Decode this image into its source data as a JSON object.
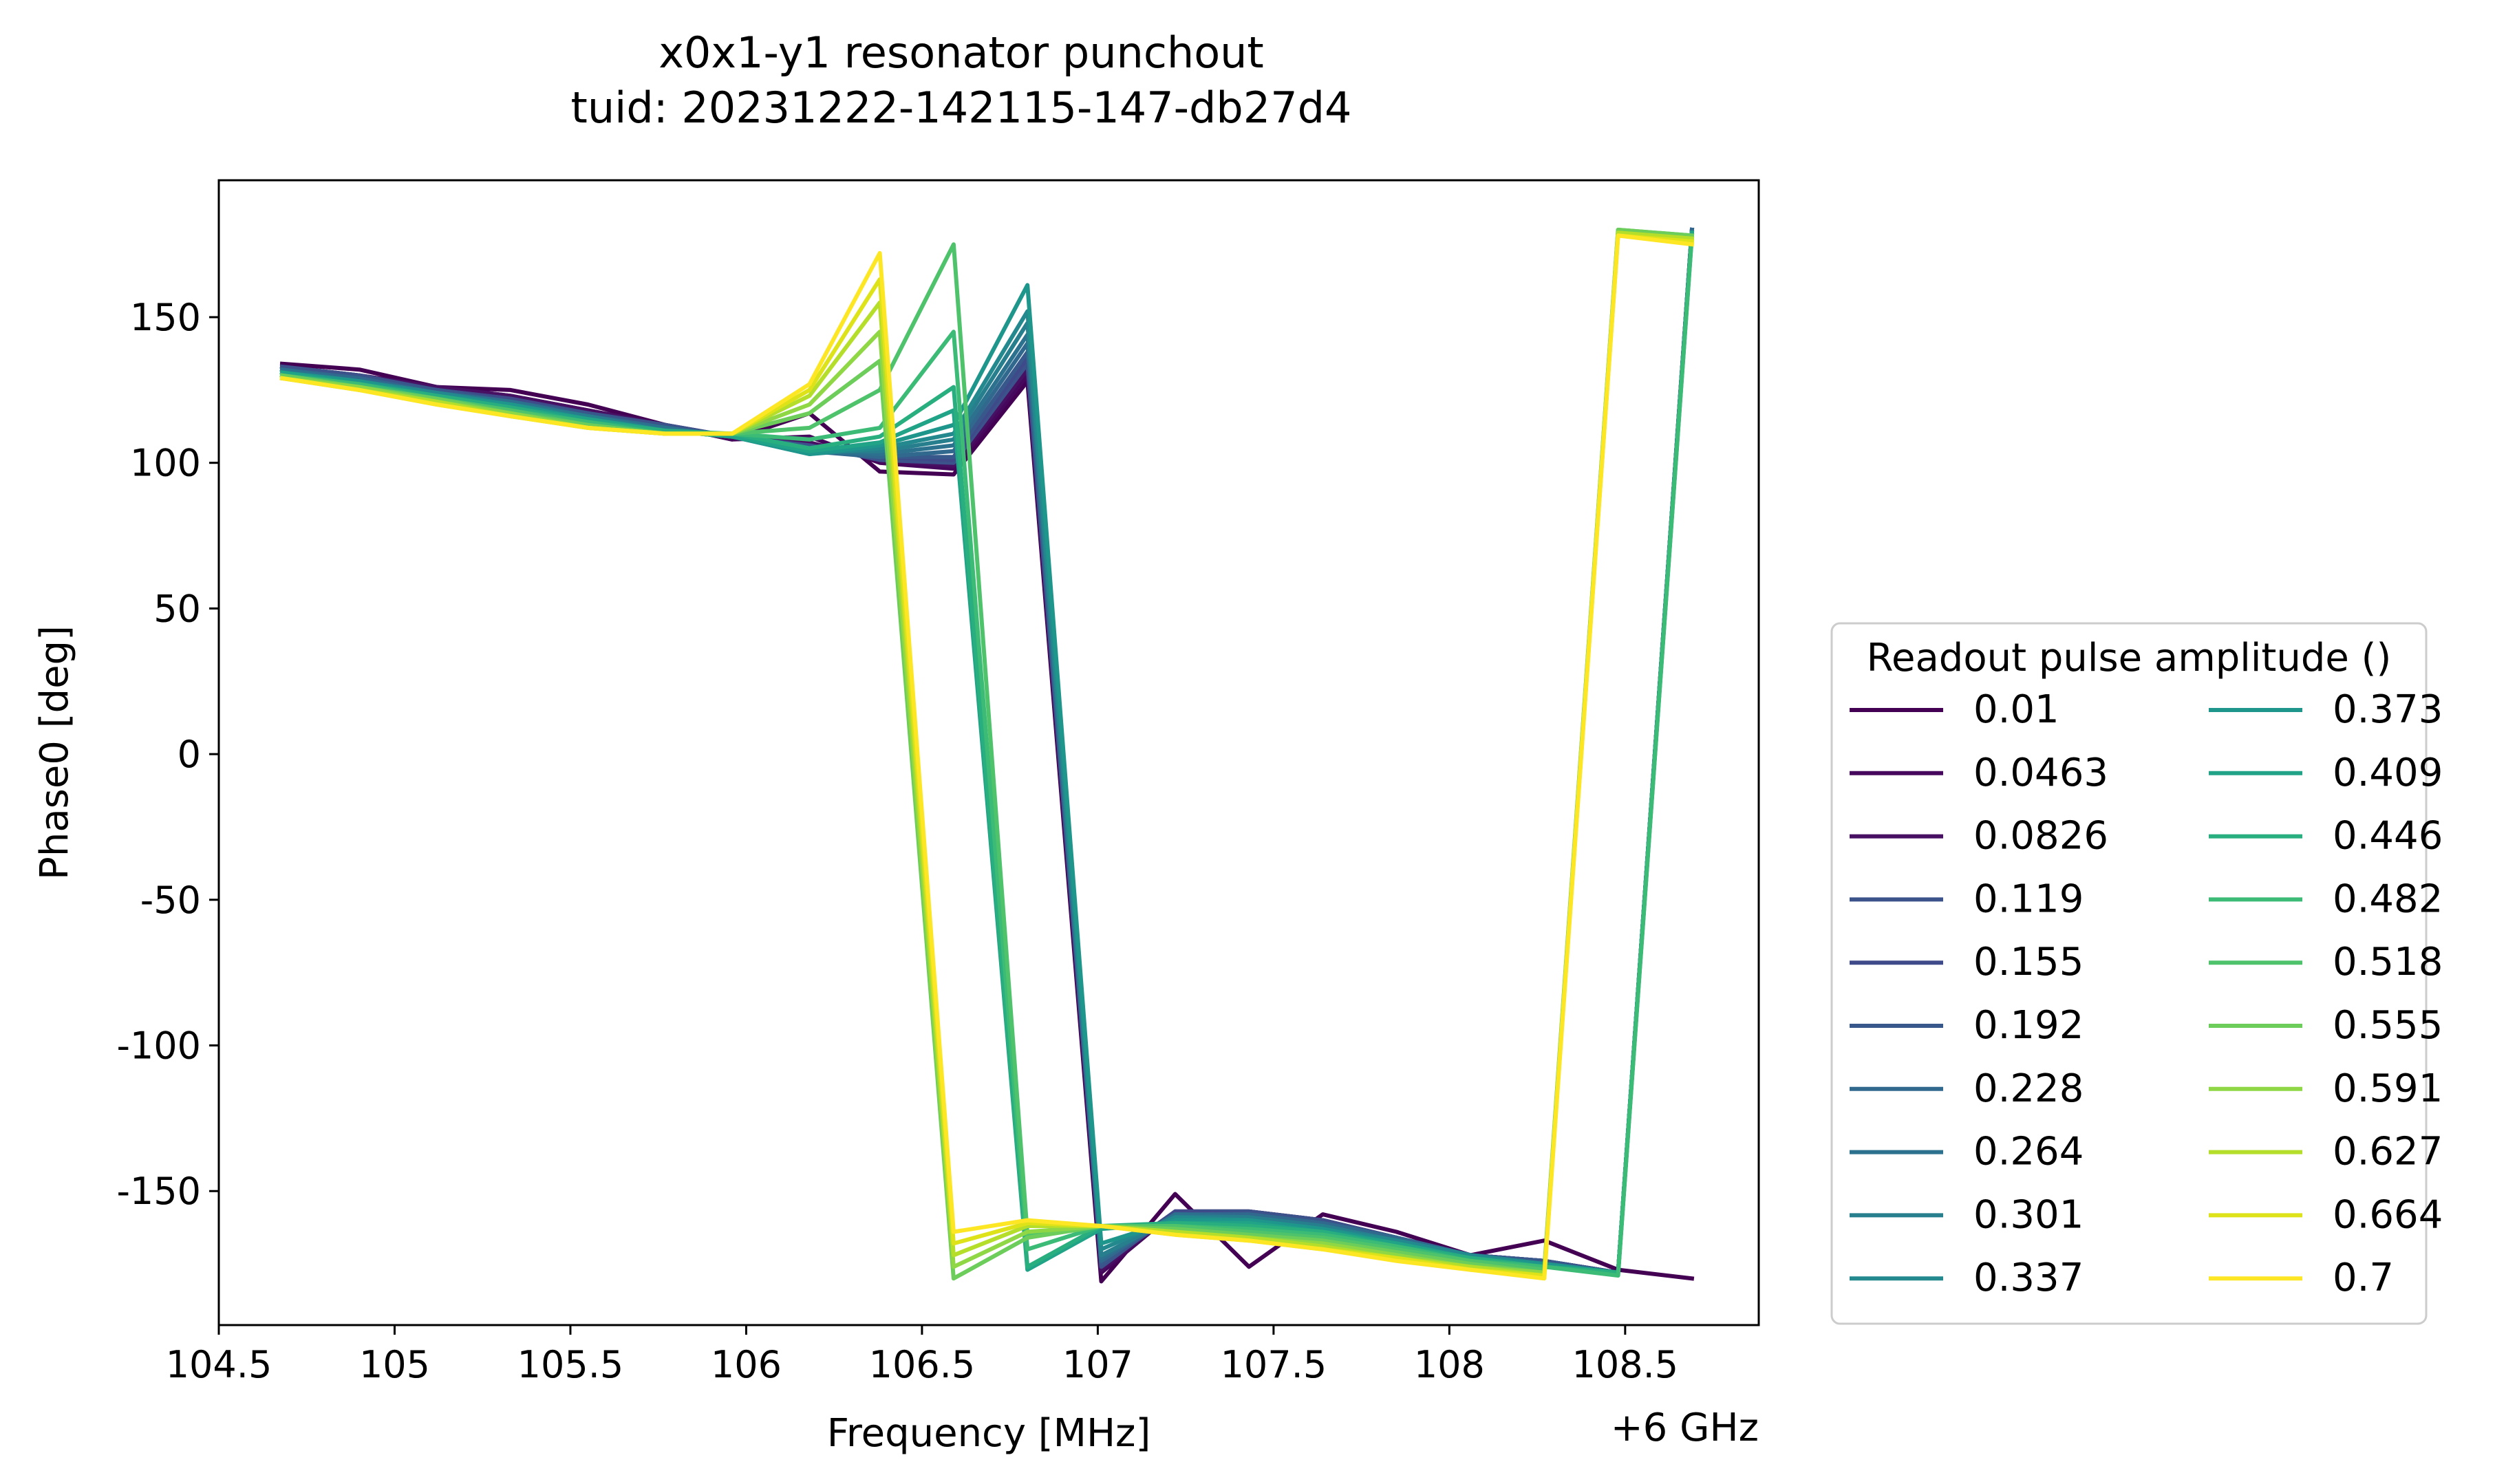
{
  "chart_data": {
    "type": "line",
    "title": "x0x1-y1 resonator punchout",
    "subtitle": "tuid: 20231222-142115-147-db27d4",
    "xlabel": "Frequency [MHz]",
    "ylabel": "Phase0 [deg]",
    "x_offset_label": "+6 GHz",
    "xlim": [
      104.5,
      108.88
    ],
    "ylim": [
      -196,
      197
    ],
    "xticks": [
      {
        "value": 104.5,
        "label": "104.5"
      },
      {
        "value": 105,
        "label": "105"
      },
      {
        "value": 105.5,
        "label": "105.5"
      },
      {
        "value": 106,
        "label": "106"
      },
      {
        "value": 106.5,
        "label": "106.5"
      },
      {
        "value": 107,
        "label": "107"
      },
      {
        "value": 107.5,
        "label": "107.5"
      },
      {
        "value": 108,
        "label": "108"
      },
      {
        "value": 108.5,
        "label": "108.5"
      }
    ],
    "yticks": [
      {
        "value": 150,
        "label": "150"
      },
      {
        "value": 100,
        "label": "100"
      },
      {
        "value": 50,
        "label": "50"
      },
      {
        "value": 0,
        "label": "0"
      },
      {
        "value": -50,
        "label": "-50"
      },
      {
        "value": -100,
        "label": "-100"
      },
      {
        "value": -150,
        "label": "-150"
      }
    ],
    "grid": false,
    "legend": {
      "title": "Readout pulse amplitude ()",
      "placement": "outside-right",
      "columns": 2
    },
    "x": [
      104.68,
      104.9,
      105.12,
      105.33,
      105.55,
      105.77,
      105.96,
      106.18,
      106.38,
      106.59,
      106.8,
      107.01,
      107.22,
      107.43,
      107.64,
      107.85,
      108.06,
      108.27,
      108.48,
      108.69
    ],
    "series": [
      {
        "name": "0.01",
        "color": "#440154",
        "values": [
          134,
          132,
          126,
          125,
          120,
          113,
          108,
          117,
          97,
          96,
          128,
          -181,
          -151,
          -176,
          -158,
          -164,
          -172,
          -167,
          -177,
          -180
        ]
      },
      {
        "name": "0.0463",
        "color": "#46085c",
        "values": [
          133,
          130,
          126,
          123,
          118,
          113,
          108,
          109,
          100,
          98,
          130,
          -178,
          -157,
          -157,
          -160,
          -166,
          -172,
          -174,
          -178,
          180
        ]
      },
      {
        "name": "0.0826",
        "color": "#471063",
        "values": [
          133,
          130,
          126,
          123,
          118,
          113,
          109,
          107,
          101,
          99,
          132,
          -177,
          -157,
          -157,
          -160,
          -166,
          -172,
          -174,
          -178,
          180
        ]
      },
      {
        "name": "0.119",
        "color": "#3b528b",
        "values": [
          133,
          130,
          125,
          122,
          117,
          113,
          109,
          106,
          101,
          100,
          134,
          -176,
          -157,
          -157,
          -160,
          -166,
          -172,
          -174,
          -178,
          180
        ]
      },
      {
        "name": "0.155",
        "color": "#3e4a89",
        "values": [
          132,
          129,
          125,
          122,
          117,
          112,
          109,
          105,
          102,
          101,
          136,
          -175,
          -157,
          -158,
          -161,
          -166,
          -172,
          -174,
          -178,
          180
        ]
      },
      {
        "name": "0.192",
        "color": "#38588c",
        "values": [
          132,
          129,
          125,
          121,
          117,
          112,
          109,
          105,
          102,
          102,
          138,
          -175,
          -158,
          -158,
          -161,
          -166,
          -172,
          -174,
          -178,
          180
        ]
      },
      {
        "name": "0.228",
        "color": "#31688e",
        "values": [
          132,
          129,
          124,
          121,
          116,
          112,
          109,
          104,
          102,
          104,
          141,
          -174,
          -158,
          -158,
          -161,
          -166,
          -172,
          -175,
          -178,
          180
        ]
      },
      {
        "name": "0.264",
        "color": "#2c728e",
        "values": [
          132,
          128,
          124,
          121,
          116,
          112,
          109,
          104,
          103,
          106,
          144,
          -173,
          -158,
          -159,
          -162,
          -167,
          -172,
          -175,
          -178,
          179
        ]
      },
      {
        "name": "0.301",
        "color": "#277f8e",
        "values": [
          131,
          128,
          124,
          120,
          116,
          111,
          109,
          104,
          104,
          108,
          148,
          -172,
          -159,
          -159,
          -162,
          -167,
          -172,
          -175,
          -178,
          179
        ]
      },
      {
        "name": "0.337",
        "color": "#23898e",
        "values": [
          131,
          128,
          124,
          120,
          115,
          111,
          109,
          103,
          105,
          110,
          152,
          -170,
          -159,
          -160,
          -163,
          -167,
          -172,
          -175,
          -178,
          179
        ]
      },
      {
        "name": "0.373",
        "color": "#1f968b",
        "values": [
          131,
          128,
          123,
          120,
          115,
          111,
          109,
          103,
          106,
          113,
          161,
          -168,
          -160,
          -160,
          -163,
          -168,
          -173,
          -175,
          -178,
          179
        ]
      },
      {
        "name": "0.409",
        "color": "#20a386",
        "values": [
          131,
          127,
          123,
          119,
          115,
          111,
          109,
          104,
          107,
          118,
          -177,
          -163,
          -161,
          -161,
          -164,
          -168,
          -173,
          -176,
          -178,
          179
        ]
      },
      {
        "name": "0.446",
        "color": "#29af7f",
        "values": [
          130,
          127,
          123,
          119,
          114,
          111,
          110,
          105,
          109,
          126,
          -176,
          -162,
          -161,
          -162,
          -164,
          -169,
          -173,
          -176,
          -178,
          178
        ]
      },
      {
        "name": "0.482",
        "color": "#3bbb75",
        "values": [
          130,
          127,
          122,
          118,
          114,
          110,
          110,
          108,
          112,
          145,
          -170,
          -162,
          -162,
          -163,
          -165,
          -169,
          -174,
          -176,
          -179,
          178
        ]
      },
      {
        "name": "0.518",
        "color": "#4ec36b",
        "values": [
          130,
          126,
          122,
          118,
          113,
          110,
          110,
          112,
          125,
          175,
          -165,
          -162,
          -162,
          -164,
          -166,
          -170,
          -174,
          -177,
          180,
          178
        ]
      },
      {
        "name": "0.555",
        "color": "#6ccd5a",
        "values": [
          130,
          126,
          122,
          117,
          113,
          110,
          110,
          117,
          135,
          -180,
          -166,
          -162,
          -163,
          -165,
          -167,
          -171,
          -175,
          -178,
          180,
          178
        ]
      },
      {
        "name": "0.591",
        "color": "#8fd744",
        "values": [
          129,
          126,
          121,
          117,
          112,
          110,
          110,
          120,
          145,
          -176,
          -164,
          -162,
          -164,
          -166,
          -168,
          -172,
          -176,
          -178,
          179,
          177
        ]
      },
      {
        "name": "0.627",
        "color": "#b5de2b",
        "values": [
          129,
          125,
          121,
          116,
          112,
          110,
          110,
          123,
          155,
          -172,
          -162,
          -162,
          -164,
          -166,
          -169,
          -173,
          -176,
          -179,
          179,
          177
        ]
      },
      {
        "name": "0.664",
        "color": "#dde318",
        "values": [
          129,
          125,
          120,
          116,
          112,
          110,
          110,
          125,
          163,
          -168,
          -161,
          -162,
          -165,
          -167,
          -170,
          -173,
          -177,
          -179,
          178,
          176
        ]
      },
      {
        "name": "0.7",
        "color": "#fde725",
        "values": [
          129,
          125,
          120,
          116,
          112,
          110,
          110,
          127,
          172,
          -164,
          -160,
          -162,
          -165,
          -167,
          -170,
          -174,
          -177,
          -180,
          178,
          175
        ]
      }
    ]
  }
}
